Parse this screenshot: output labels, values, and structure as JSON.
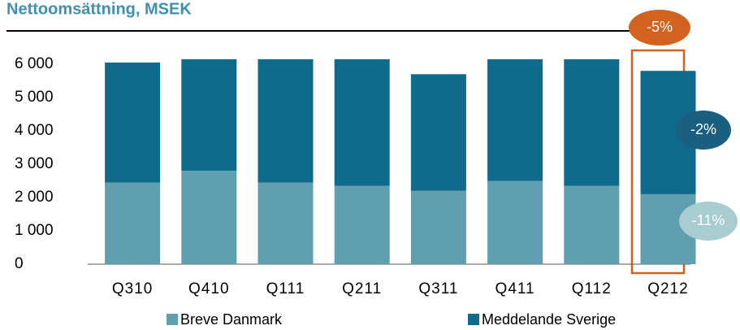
{
  "chart_data": {
    "type": "stacked_bar",
    "title": "Nettoomsättning, MSEK",
    "categories": [
      "Q310",
      "Q410",
      "Q111",
      "Q211",
      "Q311",
      "Q411",
      "Q112",
      "Q212"
    ],
    "series": [
      {
        "name": "Breve Danmark",
        "color": "#5f9fb0",
        "values": [
          2450,
          2800,
          2450,
          2350,
          2200,
          2500,
          2350,
          2100
        ]
      },
      {
        "name": "Meddelande Sverige",
        "color": "#0f6a8b",
        "values": [
          3600,
          3350,
          3700,
          3800,
          3500,
          3650,
          3800,
          3700
        ]
      }
    ],
    "ylim": [
      0,
      6000
    ],
    "yticks": [
      0,
      {
        "value": 1000,
        "label": "1 000"
      },
      {
        "value": 2000,
        "label": "2 000"
      },
      {
        "value": 3000,
        "label": "3 000"
      },
      {
        "value": 4000,
        "label": "4 000"
      },
      {
        "value": 5000,
        "label": "5 000"
      },
      {
        "value": 6000,
        "label": "6 000"
      }
    ],
    "annotations": [
      "-5%",
      "-2%",
      "-11%"
    ],
    "grid": false
  }
}
